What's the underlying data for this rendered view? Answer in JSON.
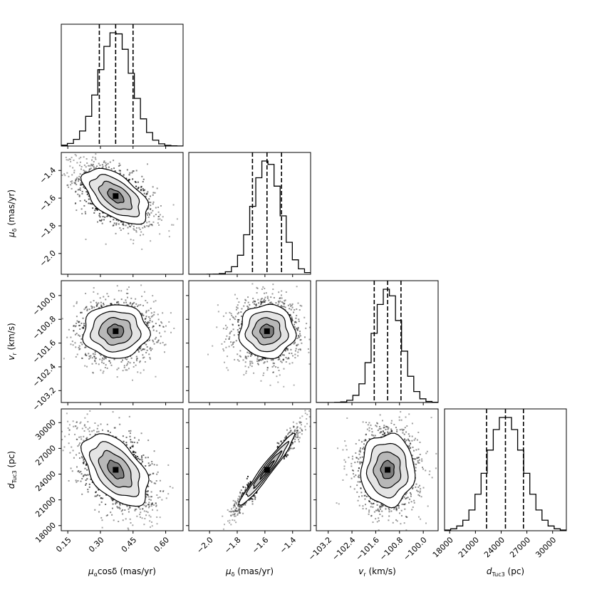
{
  "chart_data": {
    "type": "corner",
    "parameters": [
      {
        "key": "pmra",
        "label": "μαcosδ (mas/yr)",
        "range": [
          0.12,
          0.68
        ],
        "ticks": [
          "0.15",
          "0.30",
          "0.45",
          "0.60"
        ],
        "tick_values": [
          0.15,
          0.3,
          0.45,
          0.6
        ],
        "quantiles": [
          0.295,
          0.37,
          0.45
        ],
        "mean": 0.37,
        "sigma": 0.075
      },
      {
        "key": "pmdec",
        "label": "μδ (mas/yr)",
        "range": [
          -2.15,
          -1.27
        ],
        "ticks": [
          "−2.0",
          "−1.8",
          "−1.6",
          "−1.4"
        ],
        "tick_values": [
          -2.0,
          -1.8,
          -1.6,
          -1.4
        ],
        "quantiles": [
          -1.69,
          -1.585,
          -1.48
        ],
        "mean": -1.585,
        "sigma": 0.1
      },
      {
        "key": "vr",
        "label": "vr (km/s)",
        "range": [
          -103.6,
          -99.5
        ],
        "ticks": [
          "−103.2",
          "−102.4",
          "−101.6",
          "−100.8",
          "−100.0"
        ],
        "tick_values": [
          -103.2,
          -102.4,
          -101.6,
          -100.8,
          -100.0
        ],
        "quantiles": [
          -101.65,
          -101.2,
          -100.75
        ],
        "mean": -101.2,
        "sigma": 0.45
      },
      {
        "key": "dist",
        "label": "dTuc3 (pc)",
        "range": [
          17400,
          31600
        ],
        "ticks": [
          "18000",
          "21000",
          "24000",
          "27000",
          "30000"
        ],
        "tick_values": [
          18000,
          21000,
          24000,
          27000,
          30000
        ],
        "quantiles": [
          22300,
          24500,
          26600
        ],
        "mean": 24500,
        "sigma": 2100
      }
    ],
    "correlations": [
      {
        "pair": [
          "pmra",
          "pmdec"
        ],
        "rho": -0.55
      },
      {
        "pair": [
          "pmra",
          "vr"
        ],
        "rho": 0.0
      },
      {
        "pair": [
          "pmdec",
          "vr"
        ],
        "rho": 0.0
      },
      {
        "pair": [
          "pmra",
          "dist"
        ],
        "rho": -0.5
      },
      {
        "pair": [
          "pmdec",
          "dist"
        ],
        "rho": 0.97
      },
      {
        "pair": [
          "vr",
          "dist"
        ],
        "rho": 0.0
      }
    ],
    "contour_levels": [
      0.5,
      1.0,
      1.5,
      2.0
    ],
    "histogram_bins": 20
  },
  "axis_labels": {
    "pmra": {
      "main": "μ",
      "sub": "α",
      "rest": "cosδ (mas/yr)"
    },
    "pmdec": {
      "main": "μ",
      "sub": "δ",
      "rest": " (mas/yr)"
    },
    "vr": {
      "main": "v",
      "sub": "r",
      "rest": " (km/s)"
    },
    "dist": {
      "main": "d",
      "sub": "Tuc3",
      "rest": " (pc)"
    }
  }
}
